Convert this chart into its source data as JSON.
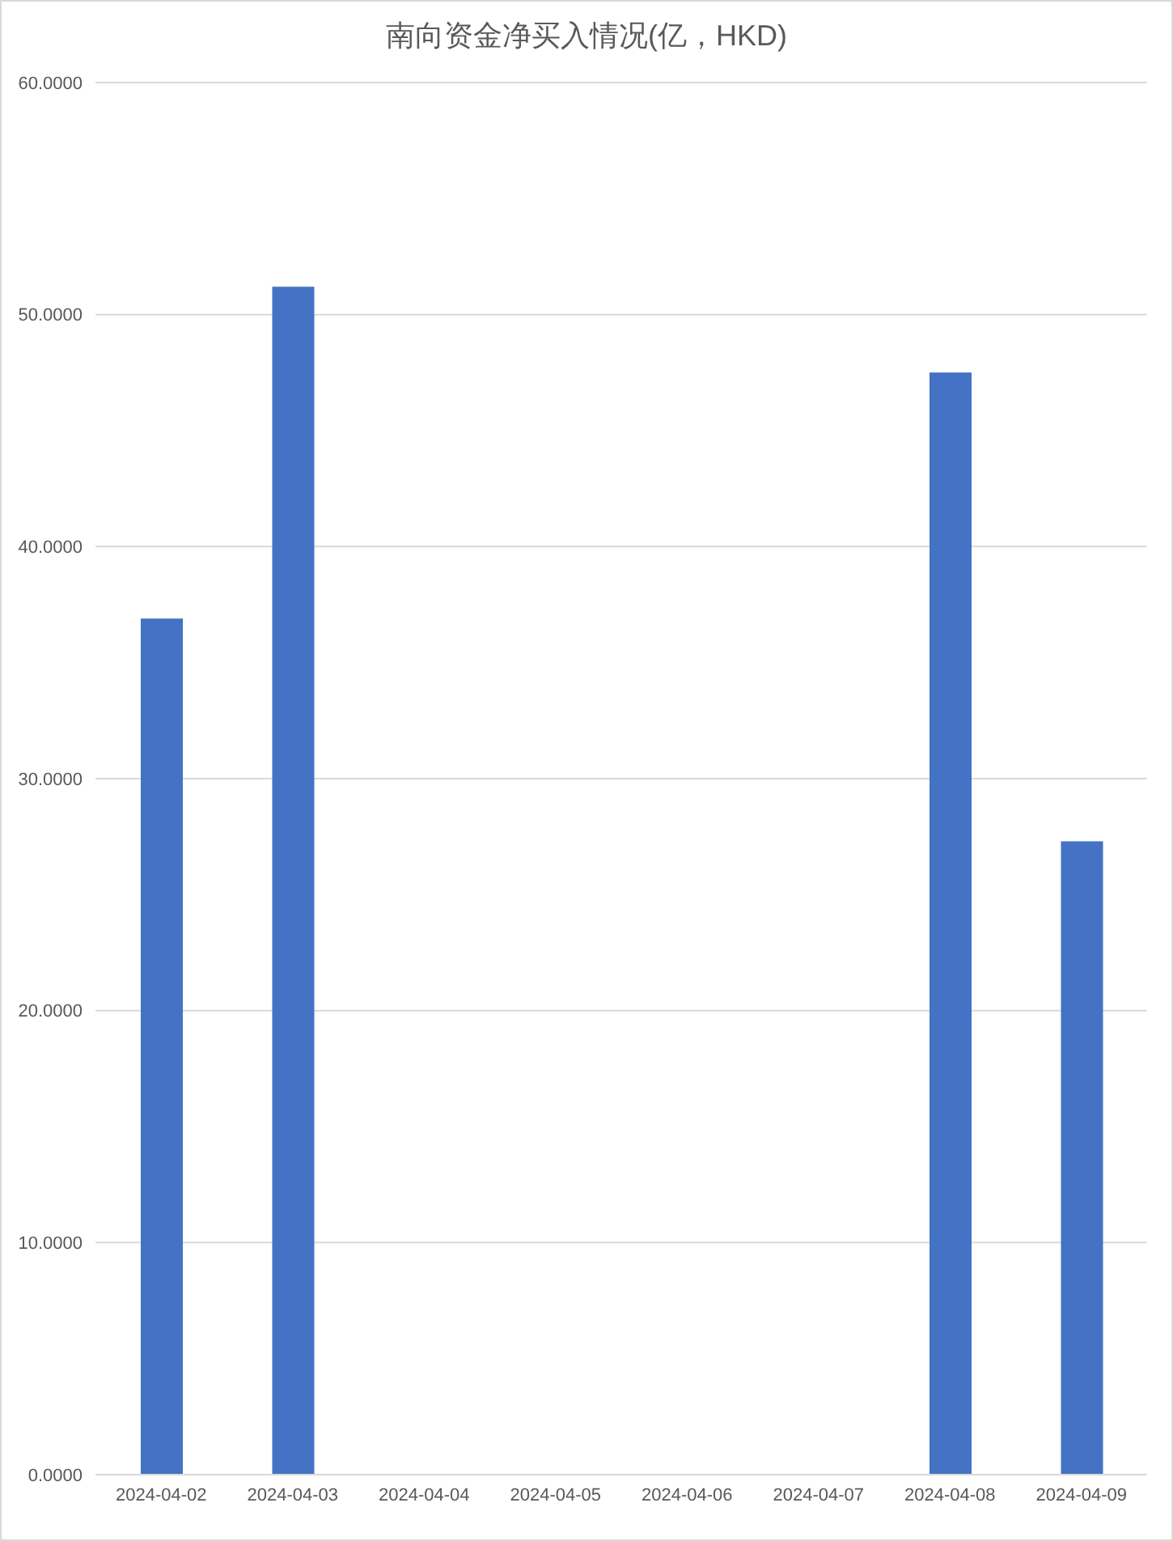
{
  "chart_data": {
    "type": "bar",
    "title": "南向资金净买入情况(亿，HKD)",
    "categories": [
      "2024-04-02",
      "2024-04-03",
      "2024-04-04",
      "2024-04-05",
      "2024-04-06",
      "2024-04-07",
      "2024-04-08",
      "2024-04-09"
    ],
    "values": [
      36.9,
      51.2,
      null,
      null,
      null,
      null,
      47.5,
      27.3
    ],
    "color": "#4472c4",
    "ylim": [
      0,
      60
    ],
    "yticks": [
      {
        "value": 0,
        "label": "0.0000"
      },
      {
        "value": 10,
        "label": "10.0000"
      },
      {
        "value": 20,
        "label": "20.0000"
      },
      {
        "value": 30,
        "label": "30.0000"
      },
      {
        "value": 40,
        "label": "40.0000"
      },
      {
        "value": 50,
        "label": "50.0000"
      },
      {
        "value": 60,
        "label": "60.0000"
      }
    ],
    "grid": "y",
    "legend": false
  }
}
